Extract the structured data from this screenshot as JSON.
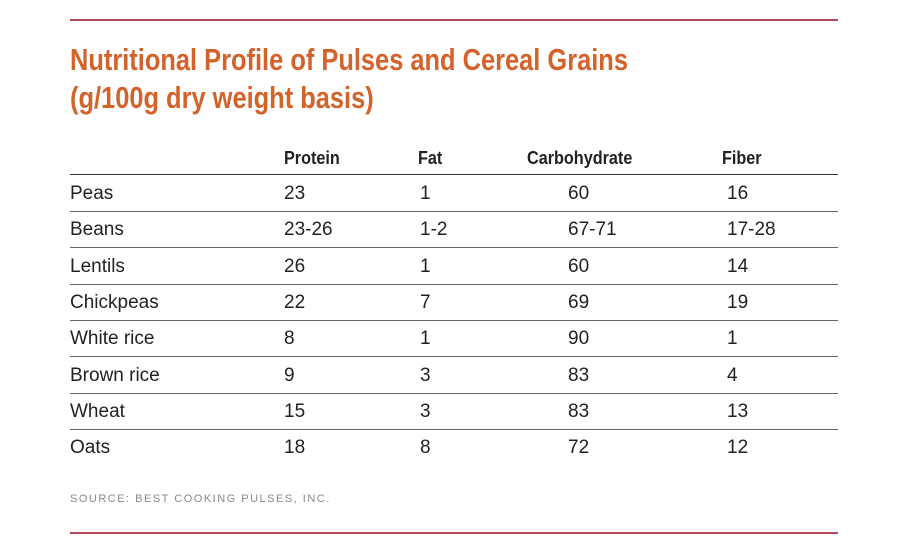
{
  "header": {
    "title": "Nutritional Profile of Pulses and Cereal Grains",
    "subtitle": "(g/100g dry weight basis)"
  },
  "table": {
    "columns": [
      "Protein",
      "Fat",
      "Carbohydrate",
      "Fiber"
    ],
    "rows": [
      [
        "Peas",
        23,
        1,
        60,
        16
      ],
      [
        "Beans",
        "23-26",
        "1-2",
        "67-71",
        "17-28"
      ],
      [
        "Lentils",
        26,
        1,
        60,
        14
      ],
      [
        "Chickpeas",
        22,
        7,
        69,
        19
      ],
      [
        "White rice",
        8,
        1,
        90,
        1
      ],
      [
        "Brown rice",
        9,
        3,
        83,
        4
      ],
      [
        "Wheat",
        15,
        3,
        83,
        13
      ],
      [
        "Oats",
        18,
        8,
        72,
        12
      ]
    ]
  },
  "footer": {
    "source": "SOURCE: BEST COOKING PULSES, INC."
  }
}
